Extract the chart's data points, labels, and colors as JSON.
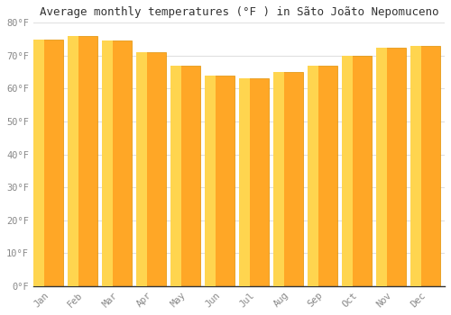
{
  "title": "Average monthly temperatures (°F ) in Sãto Joãto Nepomuceno",
  "months": [
    "Jan",
    "Feb",
    "Mar",
    "Apr",
    "May",
    "Jun",
    "Jul",
    "Aug",
    "Sep",
    "Oct",
    "Nov",
    "Dec"
  ],
  "values": [
    75,
    76,
    74.5,
    71,
    67,
    64,
    63,
    65,
    67,
    70,
    72.5,
    73
  ],
  "bar_color_main": "#FFA726",
  "bar_color_light": "#FFD54F",
  "bar_color_dark": "#FB8C00",
  "bar_edge_color": "#E09000",
  "ylim": [
    0,
    80
  ],
  "yticks": [
    0,
    10,
    20,
    30,
    40,
    50,
    60,
    70,
    80
  ],
  "ytick_labels": [
    "0°F",
    "10°F",
    "20°F",
    "30°F",
    "40°F",
    "50°F",
    "60°F",
    "70°F",
    "80°F"
  ],
  "bg_color": "#FFFFFF",
  "grid_color": "#E0E0E0",
  "title_fontsize": 9,
  "tick_fontsize": 7.5,
  "font_family": "monospace"
}
